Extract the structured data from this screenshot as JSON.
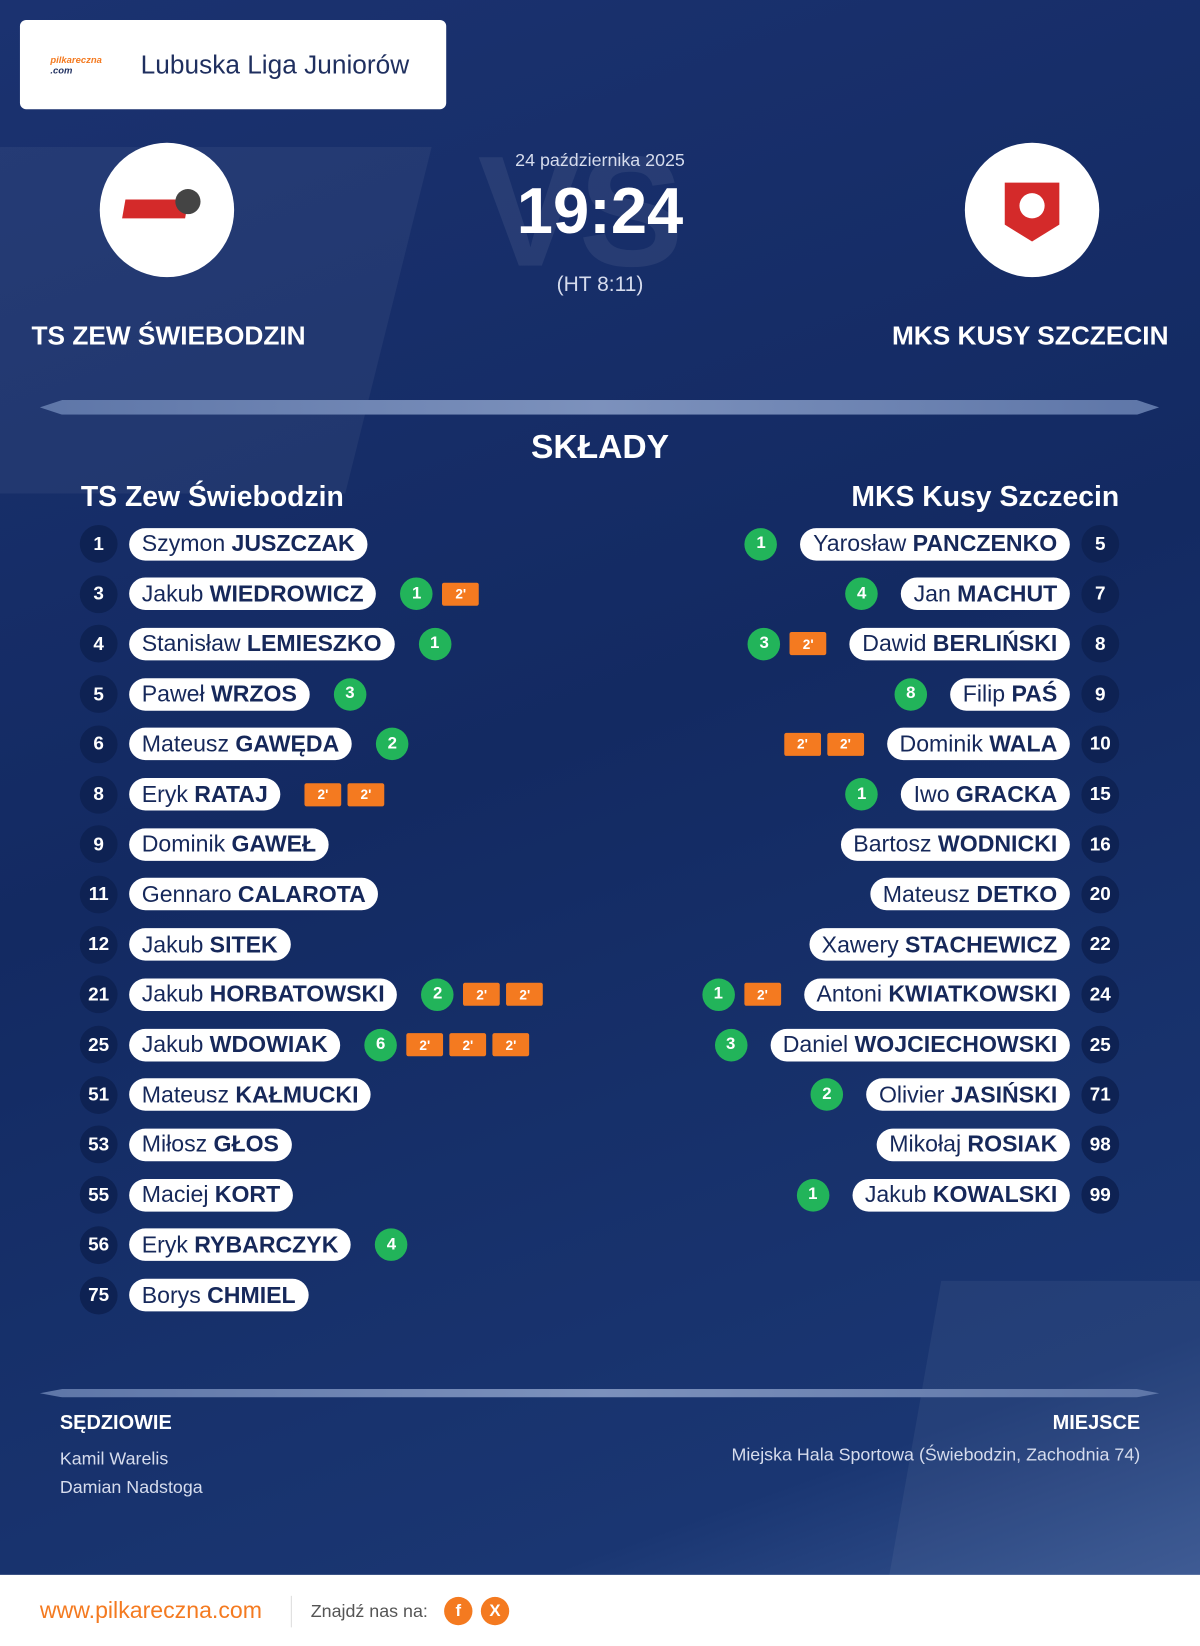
{
  "header": {
    "logo_text": "pilkareczna",
    "logo_suffix": ".com",
    "league": "Lubuska Liga Juniorów"
  },
  "match": {
    "date": "24 października 2025",
    "watermark": "VS",
    "score": "19:24",
    "halftime": "(HT 8:11)",
    "home_team": "TS ZEW ŚWIEBODZIN",
    "away_team": "MKS KUSY SZCZECIN"
  },
  "lineups": {
    "title": "SKŁADY",
    "home": {
      "name": "TS Zew Świebodzin",
      "players": [
        {
          "number": 1,
          "first": "Szymon",
          "last": "JUSZCZAK"
        },
        {
          "number": 3,
          "first": "Jakub",
          "last": "WIEDROWICZ",
          "goals": 1,
          "penalties": [
            "2'"
          ]
        },
        {
          "number": 4,
          "first": "Stanisław",
          "last": "LEMIESZKO",
          "goals": 1
        },
        {
          "number": 5,
          "first": "Paweł",
          "last": "WRZOS",
          "goals": 3
        },
        {
          "number": 6,
          "first": "Mateusz",
          "last": "GAWĘDA",
          "goals": 2
        },
        {
          "number": 8,
          "first": "Eryk",
          "last": "RATAJ",
          "penalties": [
            "2'",
            "2'"
          ]
        },
        {
          "number": 9,
          "first": "Dominik",
          "last": "GAWEŁ"
        },
        {
          "number": 11,
          "first": "Gennaro",
          "last": "CALAROTA"
        },
        {
          "number": 12,
          "first": "Jakub",
          "last": "SITEK"
        },
        {
          "number": 21,
          "first": "Jakub",
          "last": "HORBATOWSKI",
          "goals": 2,
          "penalties": [
            "2'",
            "2'"
          ]
        },
        {
          "number": 25,
          "first": "Jakub",
          "last": "WDOWIAK",
          "goals": 6,
          "penalties": [
            "2'",
            "2'",
            "2'"
          ]
        },
        {
          "number": 51,
          "first": "Mateusz",
          "last": "KAŁMUCKI"
        },
        {
          "number": 53,
          "first": "Miłosz",
          "last": "GŁOS"
        },
        {
          "number": 55,
          "first": "Maciej",
          "last": "KORT"
        },
        {
          "number": 56,
          "first": "Eryk",
          "last": "RYBARCZYK",
          "goals": 4
        },
        {
          "number": 75,
          "first": "Borys",
          "last": "CHMIEL"
        }
      ]
    },
    "away": {
      "name": "MKS Kusy Szczecin",
      "players": [
        {
          "number": 5,
          "first": "Yarosław",
          "last": "PANCZENKO",
          "goals": 1
        },
        {
          "number": 7,
          "first": "Jan",
          "last": "MACHUT",
          "goals": 4
        },
        {
          "number": 8,
          "first": "Dawid",
          "last": "BERLIŃSKI",
          "goals": 3,
          "penalties": [
            "2'"
          ]
        },
        {
          "number": 9,
          "first": "Filip",
          "last": "PAŚ",
          "goals": 8
        },
        {
          "number": 10,
          "first": "Dominik",
          "last": "WALA",
          "penalties": [
            "2'",
            "2'"
          ]
        },
        {
          "number": 15,
          "first": "Iwo",
          "last": "GRACKA",
          "goals": 1
        },
        {
          "number": 16,
          "first": "Bartosz",
          "last": "WODNICKI"
        },
        {
          "number": 20,
          "first": "Mateusz",
          "last": "DETKO"
        },
        {
          "number": 22,
          "first": "Xawery",
          "last": "STACHEWICZ"
        },
        {
          "number": 24,
          "first": "Antoni",
          "last": "KWIATKOWSKI",
          "goals": 1,
          "penalties": [
            "2'"
          ]
        },
        {
          "number": 25,
          "first": "Daniel",
          "last": "WOJCIECHOWSKI",
          "goals": 3
        },
        {
          "number": 71,
          "first": "Olivier",
          "last": "JASIŃSKI",
          "goals": 2
        },
        {
          "number": 98,
          "first": "Mikołaj",
          "last": "ROSIAK"
        },
        {
          "number": 99,
          "first": "Jakub",
          "last": "KOWALSKI",
          "goals": 1
        }
      ]
    }
  },
  "officials": {
    "title": "SĘDZIOWIE",
    "names": [
      "Kamil Warelis",
      "Damian Nadstoga"
    ]
  },
  "venue": {
    "title": "MIEJSCE",
    "text": "Miejska Hala Sportowa (Świebodzin, Zachodnia 74)"
  },
  "footer": {
    "url": "www.pilkareczna.com",
    "follow": "Znajdź nas na:",
    "icons": [
      "f",
      "X"
    ]
  }
}
